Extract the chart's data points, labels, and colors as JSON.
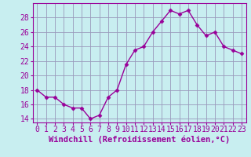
{
  "x": [
    0,
    1,
    2,
    3,
    4,
    5,
    6,
    7,
    8,
    9,
    10,
    11,
    12,
    13,
    14,
    15,
    16,
    17,
    18,
    19,
    20,
    21,
    22,
    23
  ],
  "y": [
    18,
    17,
    17,
    16,
    15.5,
    15.5,
    14,
    14.5,
    17,
    18,
    21.5,
    23.5,
    24,
    26,
    27.5,
    29,
    28.5,
    29,
    27,
    25.5,
    26,
    24,
    23.5,
    23
  ],
  "line_color": "#990099",
  "marker": "D",
  "marker_size": 2.5,
  "bg_color": "#c8eef0",
  "grid_color": "#9999bb",
  "xlabel": "Windchill (Refroidissement éolien,°C)",
  "xlabel_fontsize": 7.5,
  "tick_fontsize": 7,
  "ylim": [
    13.5,
    30
  ],
  "yticks": [
    14,
    16,
    18,
    20,
    22,
    24,
    26,
    28
  ],
  "xlim": [
    -0.5,
    23.5
  ],
  "xticks": [
    0,
    1,
    2,
    3,
    4,
    5,
    6,
    7,
    8,
    9,
    10,
    11,
    12,
    13,
    14,
    15,
    16,
    17,
    18,
    19,
    20,
    21,
    22,
    23
  ]
}
